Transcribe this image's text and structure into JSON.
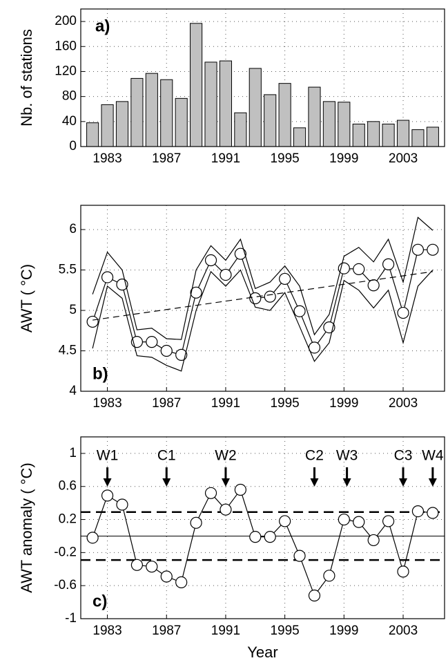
{
  "chart_data": [
    {
      "type": "bar",
      "panel_label": "a)",
      "ylabel": "Nb. of stations",
      "color": "#c0c0c0",
      "grid": true,
      "x": [
        1982,
        1983,
        1984,
        1985,
        1986,
        1987,
        1988,
        1989,
        1990,
        1991,
        1992,
        1993,
        1994,
        1995,
        1996,
        1997,
        1998,
        1999,
        2000,
        2001,
        2002,
        2003,
        2004,
        2005
      ],
      "values": [
        38,
        67,
        72,
        109,
        117,
        107,
        77,
        197,
        135,
        137,
        54,
        125,
        83,
        101,
        30,
        95,
        72,
        71,
        36,
        40,
        36,
        42,
        27,
        31
      ],
      "xlim": [
        1981.2,
        2005.8
      ],
      "xticks": [
        1983,
        1987,
        1991,
        1995,
        1999,
        2003
      ],
      "ylim": [
        0,
        220
      ],
      "yticks": [
        0,
        40,
        80,
        120,
        160,
        200
      ]
    },
    {
      "type": "line",
      "panel_label": "b)",
      "ylabel": "AWT ( °C)",
      "grid": true,
      "x": [
        1982,
        1983,
        1984,
        1985,
        1986,
        1987,
        1988,
        1989,
        1990,
        1991,
        1992,
        1993,
        1994,
        1995,
        1996,
        1997,
        1998,
        1999,
        2000,
        2001,
        2002,
        2003,
        2004,
        2005
      ],
      "series": [
        {
          "name": "AWT",
          "color": "#000000",
          "markers": true,
          "dashed": false,
          "values": [
            4.86,
            5.41,
            5.32,
            4.61,
            4.61,
            4.5,
            4.45,
            5.22,
            5.62,
            5.44,
            5.7,
            5.15,
            5.17,
            5.39,
            4.99,
            4.54,
            4.79,
            5.52,
            5.51,
            5.31,
            5.57,
            4.97,
            5.75,
            5.75
          ]
        },
        {
          "name": "upper",
          "color": "#000000",
          "markers": false,
          "dashed": false,
          "values": [
            5.2,
            5.72,
            5.5,
            4.76,
            4.78,
            4.65,
            4.64,
            5.5,
            5.8,
            5.62,
            5.88,
            5.27,
            5.35,
            5.55,
            5.3,
            4.7,
            4.95,
            5.67,
            5.78,
            5.6,
            5.88,
            5.35,
            6.15,
            5.99
          ]
        },
        {
          "name": "lower",
          "color": "#000000",
          "markers": false,
          "dashed": false,
          "values": [
            4.53,
            5.3,
            5.15,
            4.44,
            4.42,
            4.32,
            4.25,
            5.0,
            5.48,
            5.3,
            5.5,
            5.04,
            5.0,
            5.22,
            4.8,
            4.37,
            4.6,
            5.37,
            5.25,
            5.03,
            5.25,
            4.6,
            5.3,
            5.5
          ]
        },
        {
          "name": "trend",
          "color": "#000000",
          "markers": false,
          "dashed": true,
          "x": [
            1982,
            2005
          ],
          "values": [
            4.88,
            5.48
          ]
        }
      ],
      "xlim": [
        1981.2,
        2005.8
      ],
      "xticks": [
        1983,
        1987,
        1991,
        1995,
        1999,
        2003
      ],
      "ylim": [
        4,
        6.3
      ],
      "yticks": [
        4,
        4.5,
        5,
        5.5,
        6
      ]
    },
    {
      "type": "line",
      "panel_label": "c)",
      "ylabel": "AWT anomaly ( °C)",
      "xlabel": "Year",
      "grid": true,
      "x": [
        1982,
        1983,
        1984,
        1985,
        1986,
        1987,
        1988,
        1989,
        1990,
        1991,
        1992,
        1993,
        1994,
        1995,
        1996,
        1997,
        1998,
        1999,
        2000,
        2001,
        2002,
        2003,
        2004,
        2005
      ],
      "series": [
        {
          "name": "anomaly",
          "color": "#000000",
          "markers": true,
          "dashed": false,
          "values": [
            -0.02,
            0.49,
            0.38,
            -0.35,
            -0.37,
            -0.49,
            -0.56,
            0.16,
            0.52,
            0.32,
            0.56,
            -0.01,
            -0.01,
            0.18,
            -0.24,
            -0.72,
            -0.48,
            0.2,
            0.17,
            -0.05,
            0.18,
            -0.43,
            0.3,
            0.28
          ]
        }
      ],
      "hlines": [
        {
          "value": 0.29,
          "dashed": true
        },
        {
          "value": -0.29,
          "dashed": true
        },
        {
          "value": 0,
          "dashed": false
        }
      ],
      "annotations": [
        {
          "text": "W1",
          "x": 1983
        },
        {
          "text": "C1",
          "x": 1987
        },
        {
          "text": "W2",
          "x": 1991
        },
        {
          "text": "C2",
          "x": 1997
        },
        {
          "text": "W3",
          "x": 1999.2
        },
        {
          "text": "C3",
          "x": 2003
        },
        {
          "text": "W4",
          "x": 2005
        }
      ],
      "xlim": [
        1981.2,
        2005.8
      ],
      "xticks": [
        1983,
        1987,
        1991,
        1995,
        1999,
        2003
      ],
      "ylim": [
        -1,
        1.2
      ],
      "yticks": [
        -1,
        -0.6,
        -0.2,
        0.2,
        0.6,
        1
      ]
    }
  ]
}
